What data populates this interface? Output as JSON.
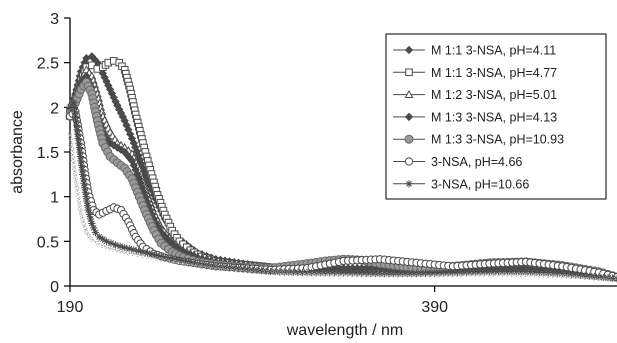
{
  "chart_data": {
    "type": "line",
    "title": "",
    "xlabel": "wavelength / nm",
    "ylabel": "absorbance",
    "xlim": [
      190,
      490
    ],
    "ylim": [
      0,
      3
    ],
    "x_ticks": [
      "190",
      "390"
    ],
    "x_tick_values": [
      190,
      390
    ],
    "y_ticks": [
      "0",
      "0.5",
      "1",
      "1.5",
      "2",
      "2.5",
      "3"
    ],
    "y_tick_values": [
      0,
      0.5,
      1,
      1.5,
      2,
      2.5,
      3
    ],
    "grid": false,
    "legend_position": "top-right",
    "colors": {
      "dark": "#4a4a4a",
      "light": "#7f7f7f",
      "faint": "#a0a0a0",
      "frame": "#000000"
    },
    "series": [
      {
        "name": "M 1:1 3-NSA, pH=4.11",
        "marker": "diamond-filled",
        "x": [
          190,
          193,
          196,
          199,
          202,
          205,
          208,
          212,
          216,
          220,
          225,
          230,
          236,
          242,
          250,
          260,
          270,
          285,
          300,
          320,
          340,
          360,
          380,
          400,
          420,
          440,
          460,
          480,
          490
        ],
        "y": [
          1.95,
          2.15,
          2.4,
          2.55,
          2.57,
          2.5,
          2.38,
          2.2,
          2.02,
          1.85,
          1.6,
          1.32,
          1.02,
          0.75,
          0.52,
          0.37,
          0.3,
          0.25,
          0.21,
          0.18,
          0.18,
          0.18,
          0.17,
          0.18,
          0.19,
          0.2,
          0.18,
          0.14,
          0.1
        ]
      },
      {
        "name": "M 1:1 3-NSA, pH=4.77",
        "marker": "square-open",
        "x": [
          190,
          193,
          196,
          199,
          202,
          205,
          208,
          211,
          214,
          217,
          220,
          223,
          226,
          230,
          234,
          238,
          242,
          246,
          250,
          256,
          262,
          270,
          280,
          290,
          300,
          320,
          340,
          360,
          380,
          400,
          420,
          440,
          460,
          480,
          490
        ],
        "y": [
          1.95,
          2.1,
          2.3,
          2.45,
          2.47,
          2.43,
          2.45,
          2.5,
          2.52,
          2.5,
          2.42,
          2.2,
          1.92,
          1.6,
          1.3,
          1.02,
          0.8,
          0.62,
          0.5,
          0.4,
          0.33,
          0.28,
          0.25,
          0.23,
          0.21,
          0.19,
          0.18,
          0.17,
          0.17,
          0.18,
          0.19,
          0.2,
          0.18,
          0.13,
          0.1
        ]
      },
      {
        "name": "M 1:2 3-NSA, pH=5.01",
        "marker": "triangle-open",
        "x": [
          190,
          193,
          196,
          199,
          202,
          205,
          208,
          212,
          216,
          220,
          224,
          228,
          232,
          236,
          240,
          246,
          252,
          260,
          270,
          285,
          300,
          320,
          340,
          360,
          380,
          400,
          420,
          440,
          460,
          480,
          490
        ],
        "y": [
          1.9,
          2.1,
          2.3,
          2.42,
          2.35,
          2.15,
          1.9,
          1.72,
          1.6,
          1.55,
          1.48,
          1.3,
          1.05,
          0.82,
          0.65,
          0.5,
          0.4,
          0.33,
          0.28,
          0.24,
          0.21,
          0.19,
          0.19,
          0.19,
          0.18,
          0.19,
          0.2,
          0.2,
          0.18,
          0.14,
          0.1
        ]
      },
      {
        "name": "M 1:3 3-NSA, pH=4.13",
        "marker": "diamond-filled",
        "x": [
          190,
          193,
          196,
          199,
          202,
          205,
          208,
          212,
          216,
          220,
          224,
          228,
          232,
          236,
          240,
          246,
          252,
          260,
          270,
          285,
          300,
          320,
          340,
          360,
          380,
          400,
          420,
          440,
          460,
          480,
          490
        ],
        "y": [
          1.92,
          2.1,
          2.28,
          2.35,
          2.22,
          1.95,
          1.72,
          1.6,
          1.55,
          1.5,
          1.4,
          1.2,
          0.95,
          0.75,
          0.6,
          0.47,
          0.38,
          0.31,
          0.26,
          0.23,
          0.2,
          0.19,
          0.2,
          0.2,
          0.18,
          0.19,
          0.21,
          0.21,
          0.19,
          0.14,
          0.1
        ]
      },
      {
        "name": "M 1:3 3-NSA, pH=10.93",
        "marker": "circle-filled",
        "x": [
          190,
          193,
          196,
          199,
          202,
          205,
          208,
          212,
          216,
          220,
          224,
          228,
          232,
          236,
          240,
          246,
          252,
          260,
          270,
          285,
          300,
          320,
          330,
          340,
          350,
          360,
          380,
          400,
          420,
          440,
          460,
          480,
          490
        ],
        "y": [
          1.9,
          2.05,
          2.2,
          2.28,
          2.15,
          1.85,
          1.6,
          1.45,
          1.38,
          1.32,
          1.2,
          1.0,
          0.8,
          0.62,
          0.48,
          0.38,
          0.32,
          0.27,
          0.24,
          0.21,
          0.2,
          0.25,
          0.28,
          0.3,
          0.29,
          0.25,
          0.2,
          0.22,
          0.26,
          0.27,
          0.23,
          0.16,
          0.1
        ]
      },
      {
        "name": "3-NSA, pH=4.66",
        "marker": "circle-open",
        "x": [
          190,
          193,
          196,
          198,
          200,
          203,
          206,
          210,
          214,
          218,
          222,
          226,
          230,
          236,
          242,
          250,
          260,
          270,
          285,
          300,
          320,
          340,
          360,
          380,
          400,
          420,
          440,
          460,
          480,
          490
        ],
        "y": [
          1.9,
          1.95,
          1.6,
          1.3,
          1.05,
          0.85,
          0.8,
          0.84,
          0.88,
          0.85,
          0.72,
          0.55,
          0.44,
          0.36,
          0.32,
          0.28,
          0.25,
          0.22,
          0.2,
          0.18,
          0.2,
          0.28,
          0.3,
          0.26,
          0.22,
          0.25,
          0.27,
          0.22,
          0.15,
          0.1
        ]
      },
      {
        "name": "3-NSA, pH=10.66",
        "marker": "star",
        "x": [
          190,
          192,
          194,
          196,
          198,
          200,
          202,
          204,
          206,
          210,
          215,
          220,
          230,
          240,
          250,
          260,
          270,
          285,
          300,
          320,
          340,
          360,
          380,
          400,
          420,
          440,
          460,
          480,
          490
        ],
        "y": [
          2.0,
          2.05,
          1.75,
          1.4,
          1.1,
          0.85,
          0.7,
          0.6,
          0.55,
          0.5,
          0.46,
          0.43,
          0.38,
          0.33,
          0.29,
          0.25,
          0.22,
          0.19,
          0.16,
          0.15,
          0.15,
          0.14,
          0.14,
          0.15,
          0.16,
          0.16,
          0.14,
          0.1,
          0.08
        ]
      },
      {
        "name": "",
        "marker": "dot-faint",
        "x": [
          190,
          193,
          196,
          199,
          202,
          205,
          208,
          212,
          216,
          222,
          230,
          240,
          250,
          262,
          275,
          290,
          310,
          330,
          350,
          370,
          390,
          410,
          430,
          450,
          470,
          490
        ],
        "y": [
          1.7,
          1.2,
          0.8,
          0.6,
          0.52,
          0.48,
          0.45,
          0.42,
          0.4,
          0.37,
          0.34,
          0.3,
          0.26,
          0.22,
          0.19,
          0.16,
          0.14,
          0.13,
          0.12,
          0.12,
          0.12,
          0.13,
          0.13,
          0.12,
          0.1,
          0.07
        ]
      }
    ]
  }
}
